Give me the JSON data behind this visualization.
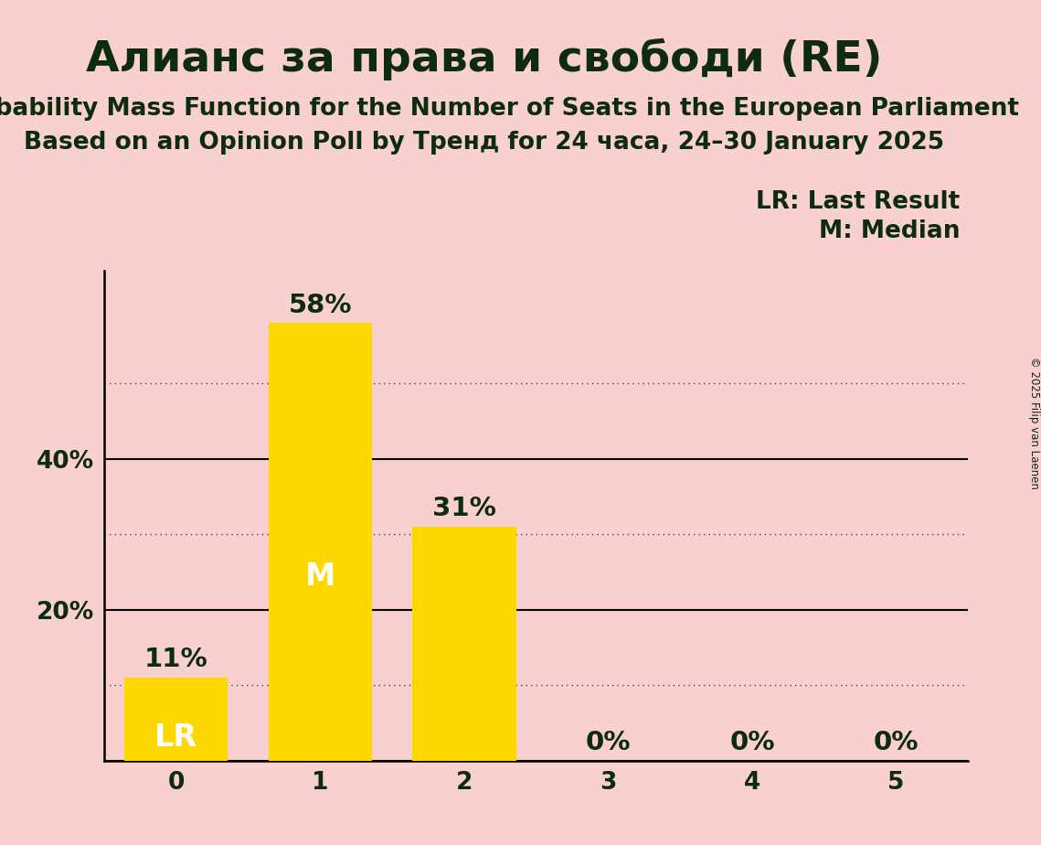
{
  "title": "Алианс за права и свободи (RE)",
  "subtitle1": "Probability Mass Function for the Number of Seats in the European Parliament",
  "subtitle2": "Based on an Opinion Poll by Тренд for 24 часа, 24–30 January 2025",
  "copyright": "© 2025 Filip van Laenen",
  "categories": [
    0,
    1,
    2,
    3,
    4,
    5
  ],
  "values": [
    0.11,
    0.58,
    0.31,
    0.0,
    0.0,
    0.0
  ],
  "bar_color": "#FFD700",
  "background_color": "#F9D0D0",
  "text_color": "#0d2b0d",
  "label_color_above": "#0d2b0d",
  "label_color_inside": "#ffffff",
  "lr_bar": 0,
  "median_bar": 1,
  "lr_label": "LR",
  "median_label": "M",
  "legend_lr": "LR: Last Result",
  "legend_m": "M: Median",
  "solid_yticks": [
    0.0,
    0.2,
    0.4
  ],
  "dotted_yticks": [
    0.1,
    0.3,
    0.5
  ],
  "ylim": [
    0,
    0.65
  ],
  "bar_width": 0.72,
  "title_fontsize": 34,
  "subtitle_fontsize": 19,
  "tick_fontsize": 19,
  "label_fontsize": 21,
  "inside_label_fontsize": 24,
  "legend_fontsize": 19
}
